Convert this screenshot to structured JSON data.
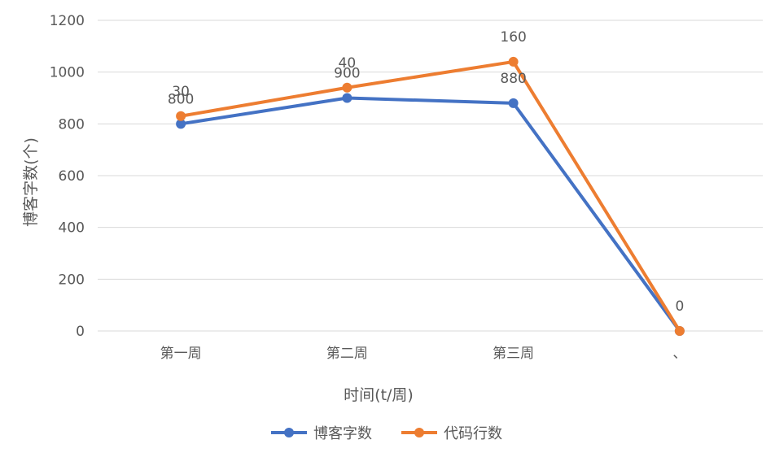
{
  "chart_data": {
    "type": "line",
    "title": "",
    "xlabel": "时间(t/周)",
    "ylabel": "博客字数(个)",
    "categories": [
      "第一周",
      "第二周",
      "第三周",
      "、"
    ],
    "ylim": [
      0,
      1200
    ],
    "yticks": [
      0,
      200,
      400,
      600,
      800,
      1000,
      1200
    ],
    "grid": true,
    "legend_position": "bottom",
    "series": [
      {
        "name": "博客字数",
        "color": "#4472C4",
        "values": [
          800,
          900,
          880,
          0
        ],
        "labels": [
          "800",
          "900",
          "880",
          "0"
        ]
      },
      {
        "name": "代码行数",
        "color": "#ED7D31",
        "values": [
          830,
          940,
          1040,
          0
        ],
        "labels": [
          "30",
          "40",
          "160",
          "0"
        ]
      }
    ]
  }
}
